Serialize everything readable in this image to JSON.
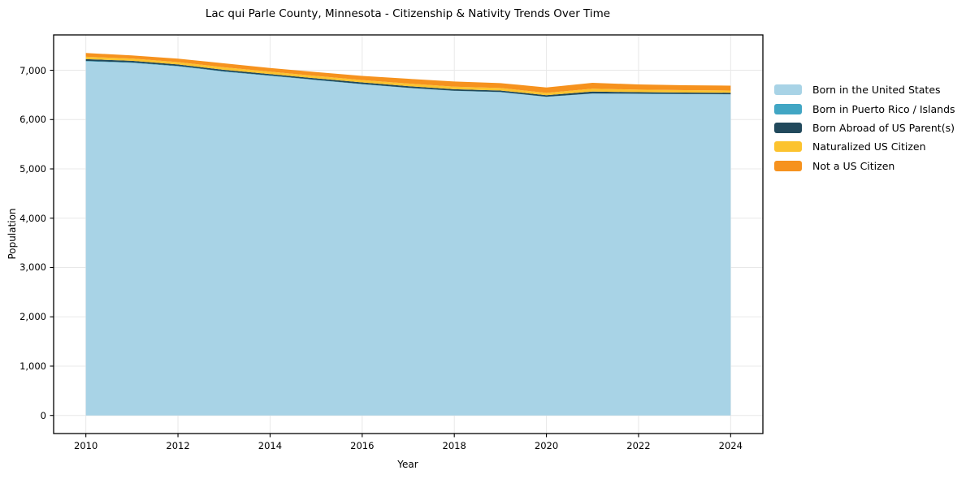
{
  "figure": {
    "background_color": "#ffffff",
    "frame_color": "#000000",
    "grid_color": "#e8e8e8"
  },
  "chart_data": {
    "type": "area",
    "stacked": true,
    "title": "Lac qui Parle County, Minnesota - Citizenship & Nativity Trends Over Time",
    "xlabel": "Year",
    "ylabel": "Population",
    "grid": true,
    "legend_position": "right",
    "x": [
      2010,
      2011,
      2012,
      2013,
      2014,
      2015,
      2016,
      2017,
      2018,
      2019,
      2020,
      2021,
      2022,
      2023,
      2024
    ],
    "xticks": [
      2010,
      2012,
      2014,
      2016,
      2018,
      2020,
      2022,
      2024
    ],
    "yticks": [
      0,
      1000,
      2000,
      3000,
      4000,
      5000,
      6000,
      7000
    ],
    "xlim": [
      2009.3,
      2024.7
    ],
    "ylim": [
      -367,
      7717
    ],
    "series": [
      {
        "name": "Born in the United States",
        "color": "#a8d3e6",
        "values": [
          7180,
          7150,
          7080,
          6970,
          6885,
          6800,
          6715,
          6640,
          6580,
          6555,
          6460,
          6525,
          6520,
          6515,
          6510
        ]
      },
      {
        "name": "Born in Puerto Rico / Islands",
        "color": "#41a6c4",
        "values": [
          10,
          10,
          8,
          8,
          8,
          6,
          6,
          5,
          5,
          5,
          4,
          5,
          5,
          4,
          4
        ]
      },
      {
        "name": "Born Abroad of US Parent(s)",
        "color": "#21495c",
        "values": [
          35,
          32,
          30,
          30,
          30,
          30,
          32,
          32,
          30,
          30,
          30,
          38,
          32,
          30,
          30
        ]
      },
      {
        "name": "Naturalized US Citizen",
        "color": "#fcc32f",
        "values": [
          50,
          45,
          48,
          52,
          48,
          50,
          48,
          55,
          52,
          50,
          48,
          58,
          50,
          48,
          45
        ]
      },
      {
        "name": "Not a US Citizen",
        "color": "#f6921e",
        "values": [
          75,
          65,
          70,
          80,
          75,
          78,
          85,
          95,
          105,
          100,
          110,
          120,
          105,
          100,
          100
        ]
      }
    ]
  }
}
